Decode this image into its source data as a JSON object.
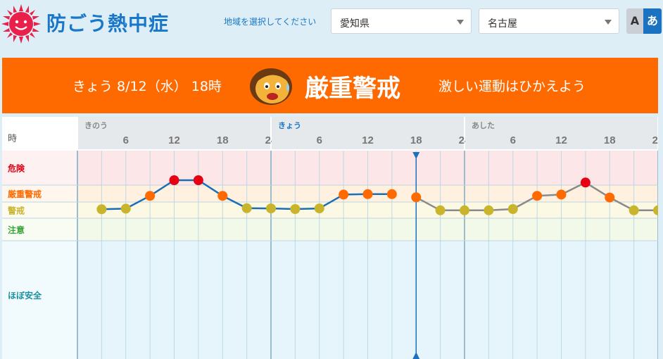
{
  "app": {
    "title": "防ごう熱中症"
  },
  "region": {
    "label": "地域を選択してください",
    "prefecture": "愛知県",
    "city": "名古屋"
  },
  "font_toggle": {
    "a_label": "A",
    "aa_label": "あ"
  },
  "banner": {
    "when": "きょう 8/12（水） 18時",
    "level": "厳重警戒",
    "advice": "激しい運動はひかえよう"
  },
  "colors": {
    "banner": "#ff6a00",
    "danger": "#e60012",
    "severe": "#ff6a00",
    "warning": "#c9b52c",
    "line_past": "#1a6eb5",
    "line_forecast": "#8a8a8a"
  },
  "chart_data": {
    "type": "line",
    "row_header": "時",
    "days": [
      "きのう",
      "きょう",
      "あした"
    ],
    "hour_ticks": [
      "6",
      "12",
      "18",
      "24"
    ],
    "levels": [
      "危険",
      "厳重警戒",
      "警戒",
      "注意",
      "ほぼ安全"
    ],
    "current_marker": {
      "day": "きょう",
      "hour": 18
    },
    "series": [
      {
        "x": [
          3,
          6,
          9,
          12,
          15,
          18,
          21,
          24,
          27,
          30,
          33,
          36,
          39,
          42,
          45,
          48,
          51,
          54,
          57,
          60,
          63,
          66,
          69,
          72
        ],
        "levels": [
          "警戒",
          "警戒",
          "厳重警戒",
          "危険",
          "危険",
          "厳重警戒",
          "警戒",
          "警戒",
          "警戒",
          "警戒",
          "厳重警戒",
          "厳重警戒",
          "厳重警戒",
          "厳重警戒",
          "警戒",
          "警戒",
          "警戒",
          "警戒",
          "厳重警戒",
          "厳重警戒",
          "危険",
          "厳重警戒",
          "警戒",
          "警戒"
        ],
        "values": [
          29.5,
          29.8,
          31.2,
          33.5,
          33.5,
          31.2,
          30.0,
          29.9,
          29.6,
          29.9,
          31.8,
          32.0,
          32.0,
          30.5,
          29.0,
          29.0,
          29.0,
          29.6,
          31.2,
          31.8,
          32.4,
          30.4,
          29.0,
          29.0
        ]
      }
    ]
  }
}
